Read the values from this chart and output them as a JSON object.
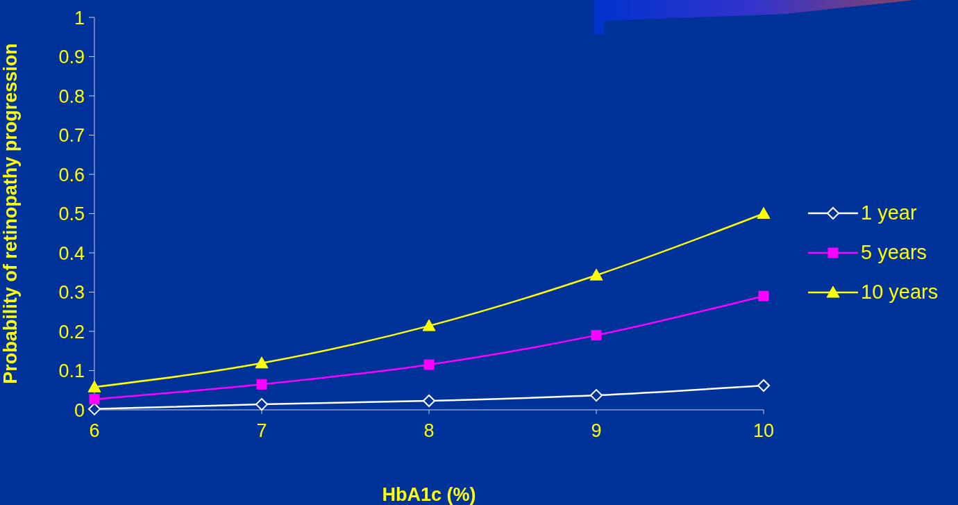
{
  "chart_data": {
    "type": "line",
    "xlabel": "HbA1c (%)",
    "ylabel": "Probability of retinopathy progression",
    "x": [
      6,
      7,
      8,
      9,
      10
    ],
    "series": [
      {
        "name": "1 year",
        "color": "#ffffff",
        "marker": "diamond",
        "values": [
          0.002,
          0.014,
          0.023,
          0.037,
          0.062
        ]
      },
      {
        "name": "5 years",
        "color": "#ff00ff",
        "marker": "square",
        "values": [
          0.027,
          0.065,
          0.115,
          0.19,
          0.29
        ]
      },
      {
        "name": "10 years",
        "color": "#ffff00",
        "marker": "triangle",
        "values": [
          0.058,
          0.119,
          0.214,
          0.343,
          0.5
        ]
      }
    ],
    "xlim": [
      6,
      10
    ],
    "xticks": [
      6,
      7,
      8,
      9,
      10
    ],
    "ylim": [
      0,
      1
    ],
    "yticks": [
      0,
      0.1,
      0.2,
      0.3,
      0.4,
      0.5,
      0.6,
      0.7,
      0.8,
      0.9,
      1
    ],
    "grid": false,
    "legend": "right",
    "line_style": "solid"
  }
}
